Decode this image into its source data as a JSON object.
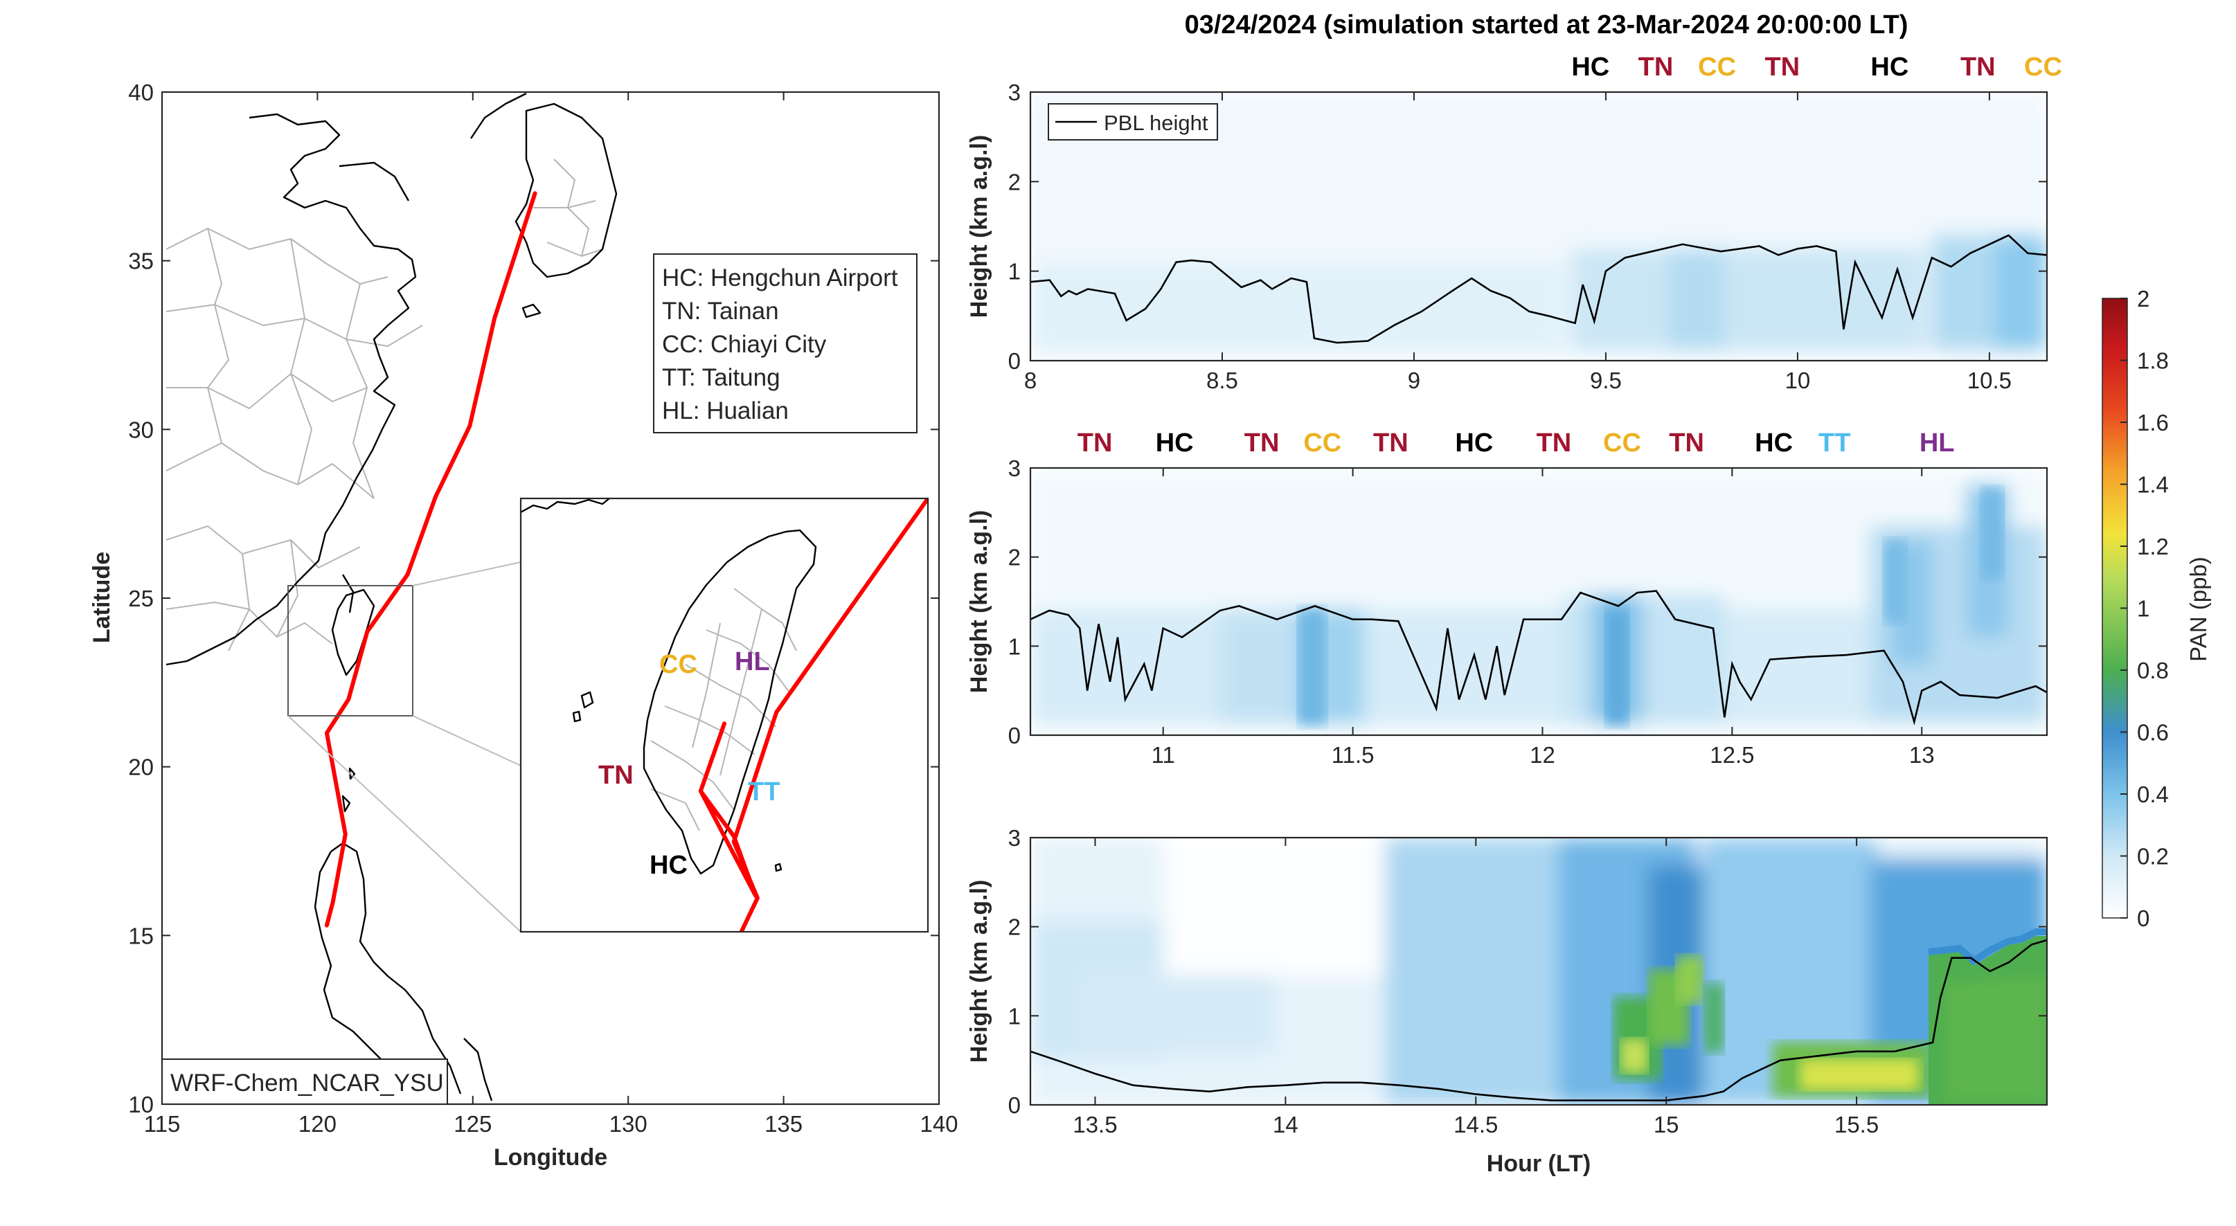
{
  "figure_title": "03/24/2024 (simulation started at 23-Mar-2024 20:00:00 LT)",
  "site_colors": {
    "HC": "#000000",
    "TN": "#a2142f",
    "CC": "#edb120",
    "TT": "#4dbeee",
    "HL": "#7e2f8e"
  },
  "chart_data": [
    {
      "type": "map",
      "xlabel": "Longitude",
      "ylabel": "Latitude",
      "xlim": [
        115,
        140
      ],
      "ylim": [
        10,
        40
      ],
      "xticks": [
        "115",
        "120",
        "125",
        "130",
        "135",
        "140"
      ],
      "yticks": [
        "10",
        "15",
        "20",
        "25",
        "30",
        "35",
        "40"
      ],
      "model_label": "WRF-Chem_NCAR_YSU",
      "legend": [
        "HC: Hengchun Airport",
        "TN: Tainan",
        "CC: Chiayi City",
        "TT: Taitung",
        "HL: Hualian"
      ],
      "flight_track": {
        "color": "#ff0000",
        "lon": [
          127.0,
          125.7,
          124.9,
          123.8,
          122.9,
          121.6,
          121.0,
          120.3,
          120.9,
          120.7,
          120.5,
          120.3
        ],
        "lat": [
          37.0,
          33.3,
          30.1,
          28.0,
          25.7,
          24.0,
          22.0,
          21.0,
          18.0,
          17.0,
          16.0,
          15.3
        ]
      },
      "inset_labels": [
        "CC",
        "HL",
        "TN",
        "TT",
        "HC"
      ],
      "inset_lon_lat": {
        "CC": [
          120.45,
          23.48
        ],
        "HL": [
          121.6,
          23.98
        ],
        "TN": [
          120.2,
          23.0
        ],
        "TT": [
          121.14,
          22.76
        ],
        "HC": [
          120.75,
          22.04
        ]
      }
    },
    {
      "type": "heatmap",
      "panel": "top",
      "xlim": [
        8.0,
        10.65
      ],
      "ylim": [
        0,
        3
      ],
      "xticks": [
        "8",
        "8.5",
        "9",
        "9.5",
        "10",
        "10.5"
      ],
      "yticks": [
        "0",
        "1",
        "2",
        "3"
      ],
      "ylabel": "Height (km a.g.l)",
      "legend": "PBL height",
      "site_sequence": [
        {
          "label": "HC",
          "hour": 9.46
        },
        {
          "label": "TN",
          "hour": 9.63
        },
        {
          "label": "CC",
          "hour": 9.79
        },
        {
          "label": "TN",
          "hour": 9.96
        },
        {
          "label": "HC",
          "hour": 10.24
        },
        {
          "label": "TN",
          "hour": 10.47
        },
        {
          "label": "CC",
          "hour": 10.64
        }
      ],
      "pbl_height": {
        "hour": [
          8.0,
          8.05,
          8.08,
          8.1,
          8.12,
          8.15,
          8.22,
          8.25,
          8.3,
          8.34,
          8.38,
          8.42,
          8.47,
          8.55,
          8.6,
          8.63,
          8.68,
          8.72,
          8.74,
          8.8,
          8.88,
          8.95,
          9.02,
          9.1,
          9.15,
          9.2,
          9.25,
          9.3,
          9.35,
          9.42,
          9.44,
          9.47,
          9.5,
          9.55,
          9.6,
          9.7,
          9.8,
          9.9,
          9.95,
          10.0,
          10.05,
          10.1,
          10.12,
          10.15,
          10.22,
          10.26,
          10.3,
          10.35,
          10.4,
          10.45,
          10.5,
          10.55,
          10.6,
          10.65
        ],
        "value": [
          0.88,
          0.9,
          0.72,
          0.78,
          0.74,
          0.8,
          0.75,
          0.45,
          0.58,
          0.8,
          1.1,
          1.12,
          1.1,
          0.82,
          0.9,
          0.8,
          0.92,
          0.88,
          0.25,
          0.2,
          0.22,
          0.4,
          0.55,
          0.78,
          0.92,
          0.78,
          0.7,
          0.55,
          0.5,
          0.42,
          0.85,
          0.44,
          1.0,
          1.15,
          1.2,
          1.3,
          1.22,
          1.28,
          1.18,
          1.25,
          1.28,
          1.22,
          0.35,
          1.1,
          0.48,
          1.02,
          0.48,
          1.15,
          1.05,
          1.2,
          1.3,
          1.4,
          1.2,
          1.18
        ]
      },
      "pan_ppb_profile": {
        "hour_bands": [
          [
            8.0,
            9.55
          ],
          [
            9.55,
            9.8
          ],
          [
            9.8,
            9.86
          ],
          [
            9.86,
            10.4
          ],
          [
            10.4,
            10.65
          ]
        ],
        "value_below_pbl": [
          0.1,
          0.2,
          0.28,
          0.15,
          0.32
        ]
      }
    },
    {
      "type": "heatmap",
      "panel": "middle",
      "xlim": [
        10.65,
        13.33
      ],
      "ylim": [
        0,
        3
      ],
      "xticks": [
        "11",
        "11.5",
        "12",
        "12.5",
        "13"
      ],
      "yticks": [
        "0",
        "1",
        "2",
        "3"
      ],
      "ylabel": "Height (km a.g.l)",
      "site_sequence": [
        {
          "label": "TN",
          "hour": 10.82
        },
        {
          "label": "HC",
          "hour": 11.03
        },
        {
          "label": "TN",
          "hour": 11.26
        },
        {
          "label": "CC",
          "hour": 11.42
        },
        {
          "label": "TN",
          "hour": 11.6
        },
        {
          "label": "HC",
          "hour": 11.82
        },
        {
          "label": "TN",
          "hour": 12.03
        },
        {
          "label": "CC",
          "hour": 12.21
        },
        {
          "label": "TN",
          "hour": 12.38
        },
        {
          "label": "HC",
          "hour": 12.61
        },
        {
          "label": "TT",
          "hour": 12.77
        },
        {
          "label": "HL",
          "hour": 13.04
        }
      ],
      "pbl_height": {
        "hour": [
          10.65,
          10.7,
          10.75,
          10.78,
          10.8,
          10.83,
          10.86,
          10.88,
          10.9,
          10.95,
          10.97,
          11.0,
          11.05,
          11.1,
          11.15,
          11.2,
          11.3,
          11.4,
          11.5,
          11.55,
          11.62,
          11.72,
          11.75,
          11.78,
          11.82,
          11.85,
          11.88,
          11.9,
          11.95,
          12.05,
          12.1,
          12.2,
          12.25,
          12.3,
          12.35,
          12.45,
          12.48,
          12.5,
          12.52,
          12.55,
          12.6,
          12.7,
          12.8,
          12.9,
          12.95,
          12.98,
          13.0,
          13.05,
          13.1,
          13.2,
          13.3,
          13.33
        ],
        "value": [
          1.3,
          1.4,
          1.35,
          1.2,
          0.5,
          1.25,
          0.6,
          1.1,
          0.4,
          0.8,
          0.5,
          1.2,
          1.1,
          1.25,
          1.4,
          1.45,
          1.3,
          1.45,
          1.3,
          1.3,
          1.28,
          0.3,
          1.2,
          0.4,
          0.9,
          0.4,
          1.0,
          0.45,
          1.3,
          1.3,
          1.6,
          1.45,
          1.6,
          1.62,
          1.3,
          1.2,
          0.2,
          0.8,
          0.6,
          0.4,
          0.85,
          0.88,
          0.9,
          0.95,
          0.6,
          0.15,
          0.5,
          0.6,
          0.45,
          0.42,
          0.55,
          0.48
        ]
      },
      "pan_ppb_profile": {
        "hour_bands": [
          [
            10.65,
            11.15
          ],
          [
            11.15,
            11.38
          ],
          [
            11.38,
            11.48
          ],
          [
            11.48,
            12.15
          ],
          [
            12.15,
            12.25
          ],
          [
            12.25,
            12.9
          ],
          [
            12.9,
            13.33
          ]
        ],
        "value_below_pbl": [
          0.2,
          0.22,
          0.42,
          0.22,
          0.45,
          0.2,
          0.3
        ]
      }
    },
    {
      "type": "heatmap",
      "panel": "bottom",
      "xlim": [
        13.33,
        16.0
      ],
      "ylim": [
        0,
        3
      ],
      "xticks": [
        "13.5",
        "14",
        "14.5",
        "15",
        "15.5"
      ],
      "yticks": [
        "0",
        "1",
        "2",
        "3"
      ],
      "xlabel": "Hour (LT)",
      "ylabel": "Height (km a.g.l)",
      "pbl_height": {
        "hour": [
          13.33,
          13.4,
          13.5,
          13.6,
          13.7,
          13.8,
          13.9,
          14.0,
          14.1,
          14.2,
          14.3,
          14.4,
          14.5,
          14.6,
          14.7,
          14.8,
          14.9,
          15.0,
          15.1,
          15.15,
          15.2,
          15.3,
          15.4,
          15.5,
          15.55,
          15.6,
          15.7,
          15.72,
          15.75,
          15.8,
          15.85,
          15.9,
          15.93,
          15.96,
          16.0
        ],
        "value": [
          0.6,
          0.5,
          0.35,
          0.22,
          0.18,
          0.15,
          0.2,
          0.22,
          0.25,
          0.25,
          0.22,
          0.18,
          0.12,
          0.08,
          0.05,
          0.05,
          0.05,
          0.05,
          0.1,
          0.15,
          0.3,
          0.5,
          0.55,
          0.6,
          0.6,
          0.6,
          0.7,
          1.2,
          1.65,
          1.65,
          1.5,
          1.6,
          1.7,
          1.8,
          1.85
        ]
      },
      "pan_ppb_profile": {
        "regions": [
          {
            "hours": [
              13.33,
              14.3
            ],
            "value": 0.1
          },
          {
            "hours": [
              14.3,
              14.8
            ],
            "value": 0.25
          },
          {
            "hours": [
              14.8,
              15.15
            ],
            "value": 0.75
          },
          {
            "hours": [
              15.15,
              15.3
            ],
            "value": 0.5
          },
          {
            "hours": [
              15.3,
              15.7
            ],
            "value": 1.1
          },
          {
            "hours": [
              15.7,
              16.0
            ],
            "value": 0.85
          }
        ]
      }
    }
  ],
  "colorbar": {
    "label": "PAN (ppb)",
    "range": [
      0,
      2
    ],
    "ticks": [
      "0",
      "0.2",
      "0.4",
      "0.6",
      "0.8",
      "1",
      "1.2",
      "1.4",
      "1.6",
      "1.8",
      "2"
    ],
    "colors": [
      "#ffffff",
      "#cfe8f6",
      "#7cc3ea",
      "#3f8fcf",
      "#4caf50",
      "#b9dc5a",
      "#f2e23b",
      "#f4a22a",
      "#e8491f",
      "#c81a1c",
      "#8e0f14"
    ]
  }
}
